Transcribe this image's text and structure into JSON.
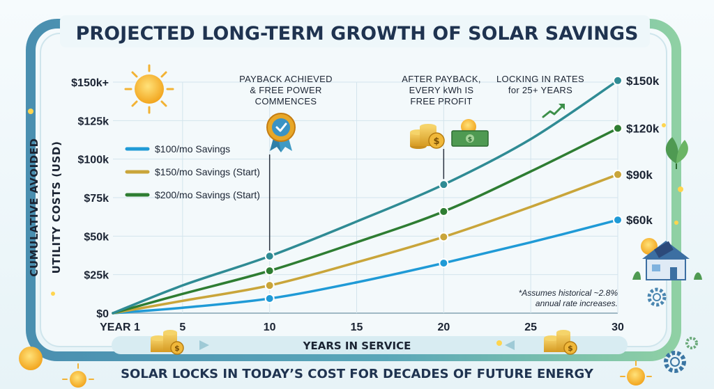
{
  "chart_data": {
    "type": "line",
    "title": "PROJECTED LONG-TERM GROWTH OF SOLAR SAVINGS",
    "xlabel": "YEARS IN SERVICE",
    "ylabel_line1": "CUMULATIVE AVOIDED",
    "ylabel_line2": "UTILITY COSTS (USD)",
    "xlim": [
      1,
      30
    ],
    "ylim": [
      0,
      150000
    ],
    "x_ticks": [
      {
        "value": 1,
        "label": "YEAR 1"
      },
      {
        "value": 5,
        "label": "5"
      },
      {
        "value": 10,
        "label": "10"
      },
      {
        "value": 15,
        "label": "15"
      },
      {
        "value": 20,
        "label": "20"
      },
      {
        "value": 25,
        "label": "25"
      },
      {
        "value": 30,
        "label": "30"
      }
    ],
    "y_ticks": [
      {
        "value": 0,
        "label": "$0"
      },
      {
        "value": 25000,
        "label": "$25k"
      },
      {
        "value": 50000,
        "label": "$50k"
      },
      {
        "value": 75000,
        "label": "$75k"
      },
      {
        "value": 100000,
        "label": "$100k"
      },
      {
        "value": 125000,
        "label": "$125k"
      },
      {
        "value": 150000,
        "label": "$150k+"
      }
    ],
    "grid": true,
    "legend_position": "left",
    "series": [
      {
        "name": "$100/mo Savings",
        "color": "#1f9ad6",
        "points": [
          [
            1,
            0
          ],
          [
            5,
            3500
          ],
          [
            10,
            9500
          ],
          [
            15,
            20000
          ],
          [
            20,
            32500
          ],
          [
            25,
            46000
          ],
          [
            30,
            60500
          ]
        ],
        "markers": [
          10,
          20,
          30
        ],
        "end_label": "$60k"
      },
      {
        "name": "$150/mo Savings (Start)",
        "color": "#c9a53a",
        "points": [
          [
            1,
            0
          ],
          [
            5,
            8000
          ],
          [
            10,
            18000
          ],
          [
            15,
            33000
          ],
          [
            20,
            49500
          ],
          [
            25,
            69000
          ],
          [
            30,
            90000
          ]
        ],
        "markers": [
          10,
          20,
          30
        ],
        "end_label": "$90k"
      },
      {
        "name": "$200/mo Savings (Start)",
        "color": "#2e7d32",
        "points": [
          [
            1,
            0
          ],
          [
            5,
            12500
          ],
          [
            10,
            27500
          ],
          [
            15,
            46000
          ],
          [
            20,
            66000
          ],
          [
            25,
            92000
          ],
          [
            30,
            120000
          ]
        ],
        "markers": [
          10,
          20,
          30
        ],
        "end_label": "$120k"
      },
      {
        "name": "",
        "color": "#2f8b94",
        "points": [
          [
            1,
            0
          ],
          [
            5,
            18000
          ],
          [
            10,
            37000
          ],
          [
            15,
            59500
          ],
          [
            20,
            83500
          ],
          [
            25,
            113000
          ],
          [
            30,
            151000
          ]
        ],
        "markers": [
          10,
          20,
          30
        ],
        "end_label": "$150k"
      }
    ],
    "annotations": [
      {
        "x": 10,
        "lines": [
          "PAYBACK ACHIEVED",
          "& FREE POWER",
          "COMMENCES"
        ],
        "icon": "ribbon-badge-icon"
      },
      {
        "x": 20,
        "lines": [
          "AFTER PAYBACK,",
          "EVERY kWh IS",
          "FREE PROFIT"
        ],
        "icon": "coins-and-cash-icon"
      },
      {
        "x": 26,
        "lines": [
          "LOCKING IN RATES",
          "for 25+ YEARS"
        ],
        "icon": "trend-arrow-icon"
      }
    ],
    "footnote_lines": [
      "*Assumes historical ~2.8%",
      "annual rate increases."
    ]
  },
  "footer": {
    "tagline": "SOLAR LOCKS IN TODAY’S COST FOR DECADES OF FUTURE ENERGY"
  },
  "colors": {
    "frame_teal": "#4f9fb4",
    "frame_green": "#7cc59a",
    "plot_background": "#f3f9fb",
    "grid": "#cfe2ea"
  }
}
